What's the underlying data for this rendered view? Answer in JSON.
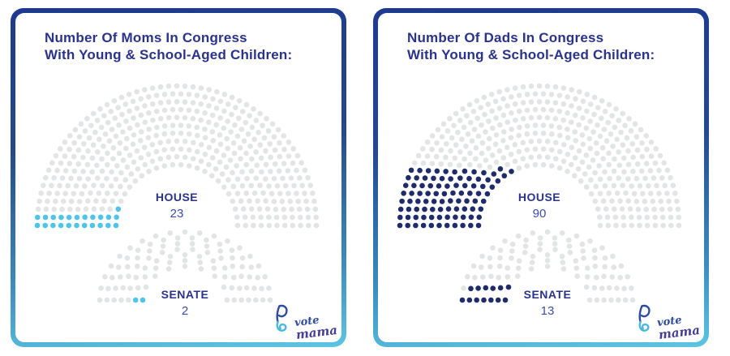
{
  "chart_data": [
    {
      "type": "parliament-dot",
      "title_line1": "Number Of Moms In Congress",
      "title_line2": "With Young & School-Aged Children:",
      "highlight_color": "#4EC5E8",
      "base_color": "#E3E4E6",
      "legend_position": "none",
      "series": [
        {
          "name": "HOUSE",
          "highlighted": 23,
          "total": 435
        },
        {
          "name": "SENATE",
          "highlighted": 2,
          "total": 100
        }
      ]
    },
    {
      "type": "parliament-dot",
      "title_line1": "Number Of Dads In Congress",
      "title_line2": "With Young & School-Aged Children:",
      "highlight_color": "#1F2C6B",
      "base_color": "#E3E4E6",
      "legend_position": "none",
      "series": [
        {
          "name": "HOUSE",
          "highlighted": 90,
          "total": 435
        },
        {
          "name": "SENATE",
          "highlighted": 13,
          "total": 100
        }
      ]
    }
  ],
  "logo": {
    "word1": "vote",
    "word2": "mama"
  },
  "colors": {
    "title_text": "#2A338C",
    "value_text": "#3B4CA6",
    "seat_base": "#E3E4E6",
    "moms_highlight": "#4EC5E8",
    "dads_highlight": "#1F2C6B",
    "border_gradient_top": "#1E3A8F",
    "border_gradient_bottom": "#5CC5E3",
    "logo_blue": "#2D4C9E",
    "logo_cyan": "#49B8DC",
    "logo_purple": "#453E94"
  }
}
